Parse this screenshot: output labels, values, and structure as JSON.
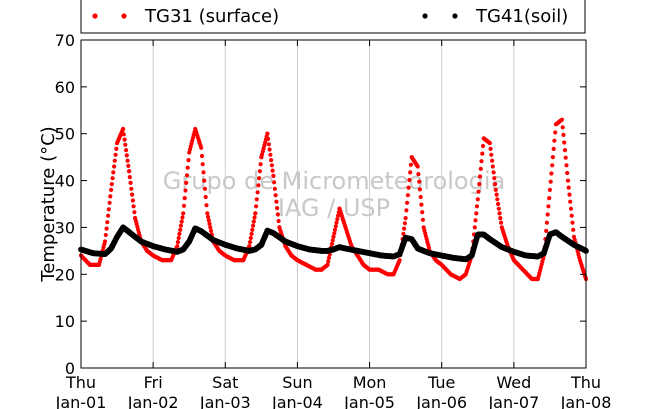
{
  "chart_data": {
    "type": "scatter",
    "title": "",
    "xlabel": "",
    "ylabel": "Temperature (°C)",
    "ylim": [
      0,
      70
    ],
    "yticks": [
      0,
      10,
      20,
      30,
      40,
      50,
      60,
      70
    ],
    "xlim": [
      "Jan-01 00:00",
      "Jan-08 00:00"
    ],
    "xticks": [
      {
        "day": "Thu",
        "date": "Jan-01"
      },
      {
        "day": "Fri",
        "date": "Jan-02"
      },
      {
        "day": "Sat",
        "date": "Jan-03"
      },
      {
        "day": "Sun",
        "date": "Jan-04"
      },
      {
        "day": "Mon",
        "date": "Jan-05"
      },
      {
        "day": "Tue",
        "date": "Jan-06"
      },
      {
        "day": "Wed",
        "date": "Jan-07"
      },
      {
        "day": "Thu",
        "date": "Jan-08"
      }
    ],
    "grid": "vertical",
    "legend": "top",
    "watermark": [
      "Grupo de Micrometeorologia",
      "IAG / USP"
    ],
    "series": [
      {
        "name": "TG31 (surface)",
        "color": "#ff0000",
        "x": [
          "Jan-01 00:00",
          "Jan-01 03:00",
          "Jan-01 06:00",
          "Jan-01 08:00",
          "Jan-01 10:00",
          "Jan-01 12:00",
          "Jan-01 14:00",
          "Jan-01 16:00",
          "Jan-01 18:00",
          "Jan-01 20:00",
          "Jan-01 22:00",
          "Jan-02 00:00",
          "Jan-02 03:00",
          "Jan-02 06:00",
          "Jan-02 08:00",
          "Jan-02 10:00",
          "Jan-02 12:00",
          "Jan-02 14:00",
          "Jan-02 16:00",
          "Jan-02 18:00",
          "Jan-02 20:00",
          "Jan-02 22:00",
          "Jan-03 00:00",
          "Jan-03 03:00",
          "Jan-03 06:00",
          "Jan-03 08:00",
          "Jan-03 10:00",
          "Jan-03 12:00",
          "Jan-03 14:00",
          "Jan-03 16:00",
          "Jan-03 18:00",
          "Jan-03 20:00",
          "Jan-03 22:00",
          "Jan-04 00:00",
          "Jan-04 03:00",
          "Jan-04 06:00",
          "Jan-04 08:00",
          "Jan-04 10:00",
          "Jan-04 12:00",
          "Jan-04 14:00",
          "Jan-04 16:00",
          "Jan-04 18:00",
          "Jan-04 20:00",
          "Jan-04 22:00",
          "Jan-05 00:00",
          "Jan-05 03:00",
          "Jan-05 06:00",
          "Jan-05 08:00",
          "Jan-05 10:00",
          "Jan-05 12:00",
          "Jan-05 14:00",
          "Jan-05 16:00",
          "Jan-05 18:00",
          "Jan-05 20:00",
          "Jan-05 22:00",
          "Jan-06 00:00",
          "Jan-06 03:00",
          "Jan-06 06:00",
          "Jan-06 08:00",
          "Jan-06 10:00",
          "Jan-06 12:00",
          "Jan-06 14:00",
          "Jan-06 16:00",
          "Jan-06 18:00",
          "Jan-06 20:00",
          "Jan-06 22:00",
          "Jan-07 00:00",
          "Jan-07 03:00",
          "Jan-07 06:00",
          "Jan-07 08:00",
          "Jan-07 10:00",
          "Jan-07 12:00",
          "Jan-07 14:00",
          "Jan-07 16:00",
          "Jan-07 18:00",
          "Jan-07 20:00",
          "Jan-07 22:00",
          "Jan-08 00:00"
        ],
        "y": [
          24,
          22,
          22,
          27,
          38,
          48,
          51,
          42,
          32,
          27,
          25,
          24,
          23,
          23,
          26,
          33,
          46,
          51,
          47,
          33,
          27,
          25,
          24,
          23,
          23,
          26,
          33,
          45,
          50,
          41,
          30,
          26,
          24,
          23,
          22,
          21,
          21,
          22,
          28,
          34,
          30,
          26,
          24,
          22,
          21,
          21,
          20,
          20,
          23,
          32,
          45,
          43,
          30,
          25,
          23,
          22,
          20,
          19,
          20,
          24,
          36,
          49,
          48,
          38,
          30,
          26,
          23,
          21,
          19,
          19,
          24,
          38,
          52,
          53,
          40,
          28,
          23,
          19
        ],
        "values_note": ""
      },
      {
        "name": "TG41(soil)",
        "color": "#000000",
        "x": [
          "Jan-01 00:00",
          "Jan-01 04:00",
          "Jan-01 08:00",
          "Jan-01 10:00",
          "Jan-01 12:00",
          "Jan-01 14:00",
          "Jan-01 16:00",
          "Jan-01 20:00",
          "Jan-02 00:00",
          "Jan-02 04:00",
          "Jan-02 08:00",
          "Jan-02 10:00",
          "Jan-02 12:00",
          "Jan-02 14:00",
          "Jan-02 16:00",
          "Jan-02 20:00",
          "Jan-03 00:00",
          "Jan-03 04:00",
          "Jan-03 08:00",
          "Jan-03 10:00",
          "Jan-03 12:00",
          "Jan-03 14:00",
          "Jan-03 16:00",
          "Jan-03 20:00",
          "Jan-04 00:00",
          "Jan-04 04:00",
          "Jan-04 08:00",
          "Jan-04 10:00",
          "Jan-04 12:00",
          "Jan-04 14:00",
          "Jan-04 16:00",
          "Jan-04 20:00",
          "Jan-05 00:00",
          "Jan-05 04:00",
          "Jan-05 08:00",
          "Jan-05 10:00",
          "Jan-05 12:00",
          "Jan-05 14:00",
          "Jan-05 16:00",
          "Jan-05 20:00",
          "Jan-06 00:00",
          "Jan-06 04:00",
          "Jan-06 08:00",
          "Jan-06 10:00",
          "Jan-06 12:00",
          "Jan-06 14:00",
          "Jan-06 16:00",
          "Jan-06 20:00",
          "Jan-07 00:00",
          "Jan-07 04:00",
          "Jan-07 08:00",
          "Jan-07 10:00",
          "Jan-07 12:00",
          "Jan-07 14:00",
          "Jan-07 16:00",
          "Jan-07 20:00",
          "Jan-08 00:00"
        ],
        "y": [
          25.3,
          24.5,
          24.3,
          25.5,
          28.0,
          30.0,
          29.0,
          27.0,
          26.0,
          25.3,
          24.8,
          25.3,
          27.0,
          29.8,
          29.2,
          27.3,
          26.3,
          25.5,
          25.0,
          25.3,
          26.3,
          29.3,
          28.8,
          27.0,
          26.0,
          25.3,
          25.0,
          25.0,
          25.3,
          25.8,
          25.5,
          25.0,
          24.5,
          24.0,
          23.8,
          24.3,
          27.8,
          27.5,
          25.5,
          24.5,
          24.0,
          23.5,
          23.2,
          24.0,
          28.5,
          28.5,
          27.5,
          25.8,
          24.8,
          24.0,
          23.8,
          24.5,
          28.5,
          29.0,
          28.0,
          26.3,
          25.0
        ]
      }
    ]
  }
}
